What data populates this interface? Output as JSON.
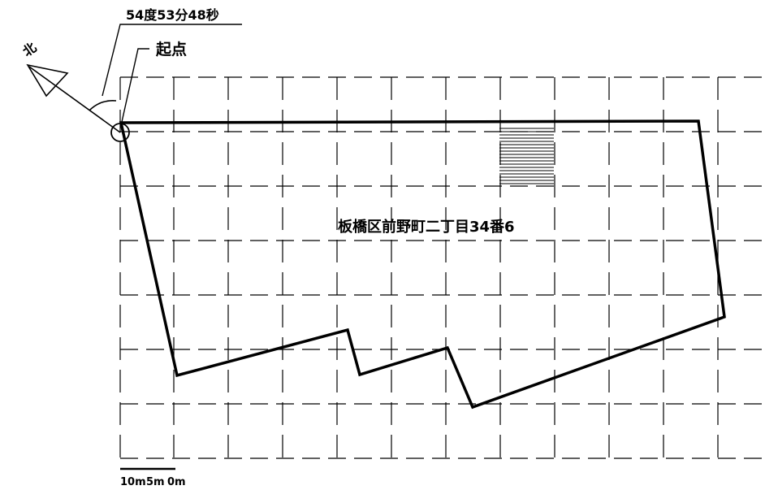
{
  "angle_label": "54度53分48秒",
  "origin_label": "起点",
  "north_label": "北",
  "parcel_label": "板橋区前野町二丁目34番6",
  "scale": {
    "label_10m": "10m",
    "label_5m": "5m",
    "label_0m": "0m"
  },
  "colors": {
    "line": "#000000",
    "background": "#ffffff"
  }
}
